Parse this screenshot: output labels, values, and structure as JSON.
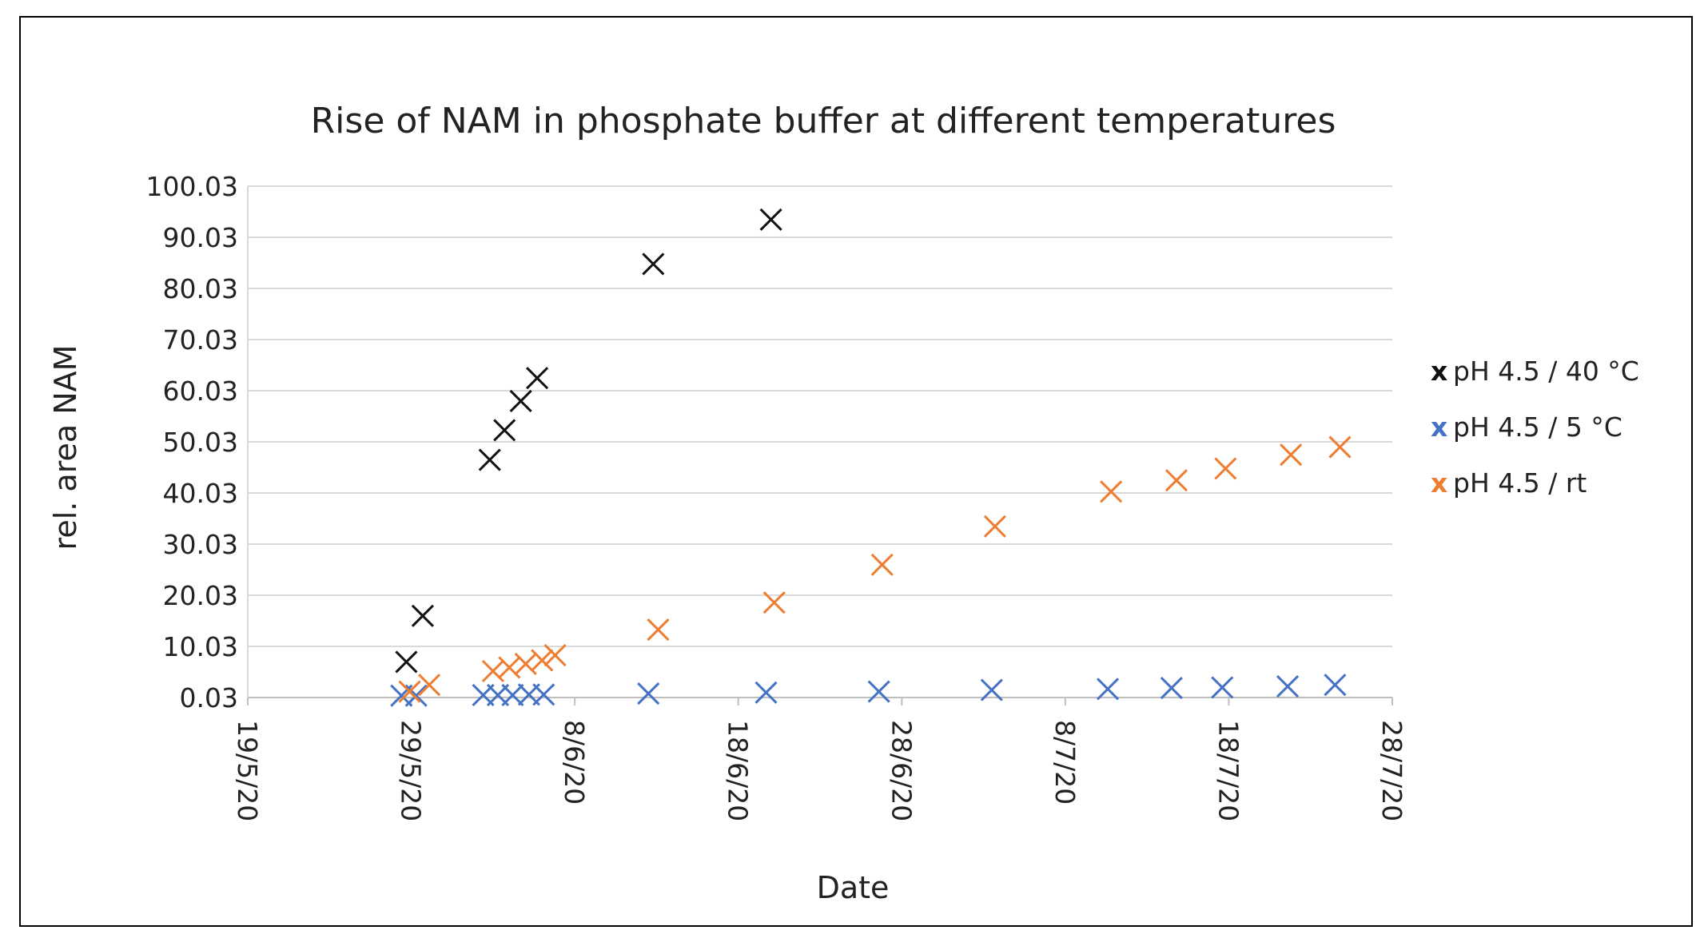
{
  "chart_data": {
    "type": "scatter",
    "title": "Rise of NAM in phosphate buffer at different temperatures",
    "xlabel": "Date",
    "ylabel": "rel. area NAM",
    "ylim": [
      0.03,
      100.03
    ],
    "xlim_days": [
      0,
      70
    ],
    "y_ticks": [
      "100.03",
      "90.03",
      "80.03",
      "70.03",
      "60.03",
      "50.03",
      "40.03",
      "30.03",
      "20.03",
      "10.03",
      "0.03"
    ],
    "x_ticks": [
      {
        "label": "19/5/20",
        "day": 0
      },
      {
        "label": "29/5/20",
        "day": 10
      },
      {
        "label": "8/6/20",
        "day": 20
      },
      {
        "label": "18/6/20",
        "day": 30
      },
      {
        "label": "28/6/20",
        "day": 40
      },
      {
        "label": "8/7/20",
        "day": 50
      },
      {
        "label": "18/7/20",
        "day": 60
      },
      {
        "label": "28/7/20",
        "day": 70
      }
    ],
    "grid": true,
    "legend_position": "right",
    "series": [
      {
        "name": "pH 4.5 / 40 °C",
        "color": "#111111",
        "marker": "x",
        "points": [
          [
            9.7,
            7.0
          ],
          [
            10.7,
            16.0
          ],
          [
            14.8,
            46.5
          ],
          [
            15.7,
            52.3
          ],
          [
            16.7,
            58.0
          ],
          [
            17.7,
            62.5
          ],
          [
            24.8,
            84.8
          ],
          [
            32.0,
            93.5
          ]
        ]
      },
      {
        "name": "pH 4.5 / 5 °C",
        "color": "#4472C4",
        "marker": "x",
        "points": [
          [
            9.4,
            0.4
          ],
          [
            10.3,
            0.4
          ],
          [
            14.4,
            0.5
          ],
          [
            15.3,
            0.5
          ],
          [
            16.2,
            0.5
          ],
          [
            17.2,
            0.6
          ],
          [
            18.1,
            0.6
          ],
          [
            24.5,
            0.8
          ],
          [
            31.7,
            1.0
          ],
          [
            38.6,
            1.2
          ],
          [
            45.5,
            1.5
          ],
          [
            52.6,
            1.7
          ],
          [
            56.5,
            1.9
          ],
          [
            59.6,
            2.0
          ],
          [
            63.6,
            2.2
          ],
          [
            66.5,
            2.5
          ]
        ]
      },
      {
        "name": "pH 4.5 / rt",
        "color": "#ED7D31",
        "marker": "x",
        "points": [
          [
            9.9,
            1.2
          ],
          [
            11.1,
            2.5
          ],
          [
            15.0,
            5.2
          ],
          [
            16.0,
            5.9
          ],
          [
            17.0,
            6.6
          ],
          [
            18.0,
            7.3
          ],
          [
            18.8,
            8.3
          ],
          [
            25.1,
            13.3
          ],
          [
            32.2,
            18.6
          ],
          [
            38.8,
            26.0
          ],
          [
            45.7,
            33.5
          ],
          [
            52.8,
            40.3
          ],
          [
            56.8,
            42.5
          ],
          [
            59.8,
            44.8
          ],
          [
            63.8,
            47.5
          ],
          [
            66.8,
            49.0
          ]
        ]
      }
    ]
  }
}
